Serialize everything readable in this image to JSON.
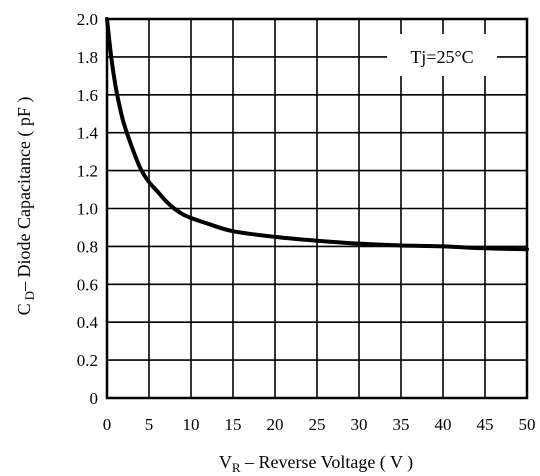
{
  "chart_data": {
    "type": "line",
    "title": "",
    "xlabel": {
      "main": "V",
      "sub": "R",
      "rest": " – Reverse Voltage ( V )"
    },
    "ylabel": {
      "main": "C",
      "sub": "D",
      "rest": "– Diode Capacitance ( pF )"
    },
    "xlim": [
      0,
      50
    ],
    "ylim": [
      0,
      2.0
    ],
    "x_ticks": [
      "0",
      "5",
      "10",
      "15",
      "20",
      "25",
      "30",
      "35",
      "40",
      "45",
      "50"
    ],
    "y_ticks": [
      "0",
      "0.2",
      "0.4",
      "0.6",
      "0.8",
      "1.0",
      "1.2",
      "1.4",
      "1.6",
      "1.8",
      "2.0"
    ],
    "grid": true,
    "annotation": "Tj=25°C",
    "series": [
      {
        "x": [
          0,
          0.5,
          1,
          1.5,
          2,
          3,
          4,
          5,
          6,
          7,
          8,
          9,
          10,
          12,
          15,
          20,
          25,
          30,
          35,
          40,
          45,
          50
        ],
        "y": [
          2.0,
          1.8,
          1.65,
          1.54,
          1.45,
          1.32,
          1.21,
          1.14,
          1.09,
          1.04,
          1.0,
          0.97,
          0.95,
          0.92,
          0.88,
          0.85,
          0.83,
          0.815,
          0.805,
          0.8,
          0.79,
          0.785
        ],
        "color": "#000000"
      }
    ]
  }
}
